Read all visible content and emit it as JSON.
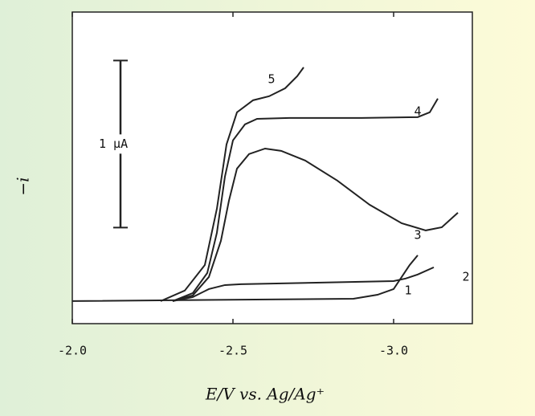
{
  "chart_data": {
    "type": "line",
    "x_label": "E/V vs. Ag/Ag⁺",
    "y_label": "−i",
    "xlim": [
      -2.0,
      -3.245
    ],
    "xticks": [
      {
        "value": -2.0,
        "label": "-2.0"
      },
      -2.5,
      {
        "value": -3.0,
        "label": "-3.0"
      }
    ],
    "ylim": [
      -0.135,
      1.73
    ],
    "scale_bar": {
      "label": "1 μA",
      "from": 0.44,
      "to": 1.44
    },
    "series": [
      {
        "name": "1",
        "color": "#222222",
        "x": [
          -2.0,
          -2.875,
          -2.95,
          -3.0,
          -3.025,
          -3.05,
          -3.075
        ],
        "values": [
          0,
          0.014,
          0.038,
          0.072,
          0.144,
          0.216,
          0.274
        ]
      },
      {
        "name": "2",
        "color": "#222222",
        "x": [
          -2.3125,
          -2.375,
          -2.425,
          -2.475,
          -2.525,
          -2.775,
          -3.0,
          -3.0375,
          -3.075,
          -3.125
        ],
        "values": [
          0,
          0.024,
          0.072,
          0.096,
          0.101,
          0.111,
          0.12,
          0.135,
          0.159,
          0.202
        ]
      },
      {
        "name": "3",
        "color": "#222222",
        "x": [
          -2.3125,
          -2.375,
          -2.425,
          -2.4625,
          -2.4875,
          -2.5125,
          -2.55,
          -2.6,
          -2.65,
          -2.725,
          -2.825,
          -2.925,
          -3.025,
          -3.1,
          -3.15,
          -3.2
        ],
        "values": [
          0,
          0.034,
          0.144,
          0.361,
          0.601,
          0.793,
          0.88,
          0.913,
          0.899,
          0.841,
          0.721,
          0.577,
          0.466,
          0.423,
          0.442,
          0.529
        ]
      },
      {
        "name": "4",
        "color": "#222222",
        "x": [
          -2.3125,
          -2.375,
          -2.42,
          -2.45,
          -2.475,
          -2.5,
          -2.5375,
          -2.575,
          -2.675,
          -2.9,
          -3.075,
          -3.1125,
          -3.1375
        ],
        "values": [
          0,
          0.048,
          0.168,
          0.409,
          0.745,
          0.962,
          1.058,
          1.091,
          1.096,
          1.096,
          1.101,
          1.13,
          1.212
        ]
      },
      {
        "name": "5",
        "color": "#222222",
        "x": [
          -2.275,
          -2.35,
          -2.4125,
          -2.45,
          -2.48,
          -2.5125,
          -2.5625,
          -2.6125,
          -2.6625,
          -2.7,
          -2.72
        ],
        "values": [
          0,
          0.063,
          0.216,
          0.553,
          0.938,
          1.13,
          1.202,
          1.226,
          1.274,
          1.346,
          1.399
        ]
      }
    ]
  }
}
